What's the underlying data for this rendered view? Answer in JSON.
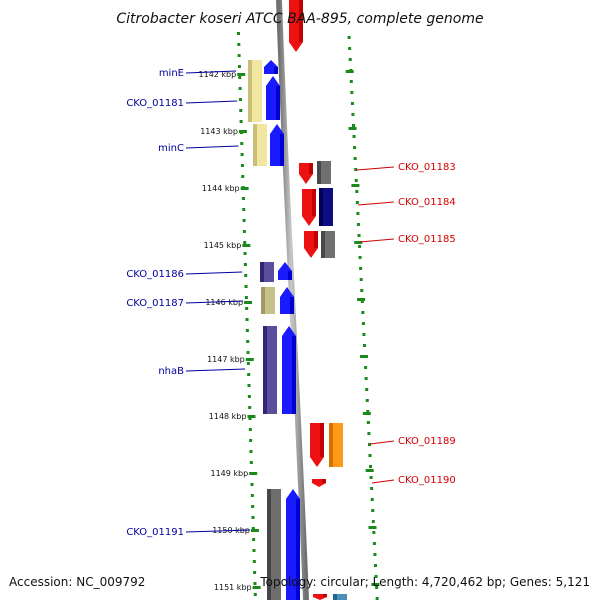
{
  "title": "Citrobacter koseri ATCC BAA-895, complete genome",
  "footer": {
    "accession": "Accession: NC_009792",
    "topology": "Topology: circular; Length: 4,720,462 bp; Genes: 5,121"
  },
  "ticks": [
    {
      "label": "1142 kbp",
      "y": 74
    },
    {
      "label": "1143 kbp",
      "y": 131
    },
    {
      "label": "1144 kbp",
      "y": 188
    },
    {
      "label": "1145 kbp",
      "y": 245
    },
    {
      "label": "1146 kbp",
      "y": 302
    },
    {
      "label": "1147 kbp",
      "y": 359
    },
    {
      "label": "1148 kbp",
      "y": 416
    },
    {
      "label": "1149 kbp",
      "y": 473
    },
    {
      "label": "1150 kbp",
      "y": 530
    },
    {
      "label": "1151 kbp",
      "y": 587
    }
  ],
  "labels_left": [
    {
      "text": "minE",
      "y": 73
    },
    {
      "text": "CKO_01181",
      "y": 103
    },
    {
      "text": "minC",
      "y": 148
    },
    {
      "text": "CKO_01186",
      "y": 274
    },
    {
      "text": "CKO_01187",
      "y": 303
    },
    {
      "text": "nhaB",
      "y": 371
    },
    {
      "text": "CKO_01191",
      "y": 532
    }
  ],
  "labels_right": [
    {
      "text": "CKO_01183",
      "y": 167
    },
    {
      "text": "CKO_01184",
      "y": 202
    },
    {
      "text": "CKO_01185",
      "y": 239
    },
    {
      "text": "CKO_01189",
      "y": 441
    },
    {
      "text": "CKO_01190",
      "y": 480
    }
  ],
  "features_left": [
    {
      "x": 248,
      "y1": 60,
      "y2": 122,
      "w": 14,
      "color": "#f2e7a0"
    },
    {
      "x": 253,
      "y1": 124,
      "y2": 166,
      "w": 14,
      "color": "#f2e7a0"
    },
    {
      "x": 260,
      "y1": 262,
      "y2": 282,
      "w": 14,
      "color": "#5a4f9c"
    },
    {
      "x": 261,
      "y1": 287,
      "y2": 314,
      "w": 14,
      "color": "#c7c28a"
    },
    {
      "x": 263,
      "y1": 326,
      "y2": 414,
      "w": 14,
      "color": "#5a4f9c"
    },
    {
      "x": 267,
      "y1": 489,
      "y2": 600,
      "w": 14,
      "color": "#6e6e6e"
    }
  ],
  "genes_fwd": [
    {
      "x": 264,
      "y1": 60,
      "y2": 74,
      "w": 14,
      "color": "#1a1aff"
    },
    {
      "x": 266,
      "y1": 76,
      "y2": 120,
      "w": 14,
      "color": "#1a1aff"
    },
    {
      "x": 270,
      "y1": 124,
      "y2": 166,
      "w": 14,
      "color": "#1a1aff"
    },
    {
      "x": 278,
      "y1": 262,
      "y2": 280,
      "w": 14,
      "color": "#1a1aff"
    },
    {
      "x": 280,
      "y1": 287,
      "y2": 314,
      "w": 14,
      "color": "#1a1aff"
    },
    {
      "x": 282,
      "y1": 326,
      "y2": 414,
      "w": 14,
      "color": "#1a1aff"
    },
    {
      "x": 286,
      "y1": 489,
      "y2": 600,
      "w": 14,
      "color": "#1a1aff"
    }
  ],
  "genes_rev": [
    {
      "x": 289,
      "y1": 0,
      "y2": 52,
      "w": 14,
      "color": "#ee1111"
    },
    {
      "x": 299,
      "y1": 163,
      "y2": 184,
      "w": 14,
      "color": "#ee1111"
    },
    {
      "x": 302,
      "y1": 189,
      "y2": 226,
      "w": 14,
      "color": "#ee1111"
    },
    {
      "x": 304,
      "y1": 231,
      "y2": 258,
      "w": 14,
      "color": "#ee1111"
    },
    {
      "x": 310,
      "y1": 423,
      "y2": 467,
      "w": 14,
      "color": "#ee1111"
    },
    {
      "x": 312,
      "y1": 479,
      "y2": 487,
      "w": 14,
      "color": "#ee1111"
    },
    {
      "x": 313,
      "y1": 594,
      "y2": 600,
      "w": 14,
      "color": "#ee1111"
    }
  ],
  "features_right": [
    {
      "x": 317,
      "y1": 161,
      "y2": 184,
      "w": 14,
      "color": "#707070"
    },
    {
      "x": 319,
      "y1": 188,
      "y2": 226,
      "w": 14,
      "color": "#0d0d80"
    },
    {
      "x": 321,
      "y1": 231,
      "y2": 258,
      "w": 14,
      "color": "#707070"
    },
    {
      "x": 329,
      "y1": 423,
      "y2": 467,
      "w": 14,
      "color": "#ff9a1a"
    },
    {
      "x": 333,
      "y1": 594,
      "y2": 600,
      "w": 14,
      "color": "#4a8fb8"
    }
  ]
}
